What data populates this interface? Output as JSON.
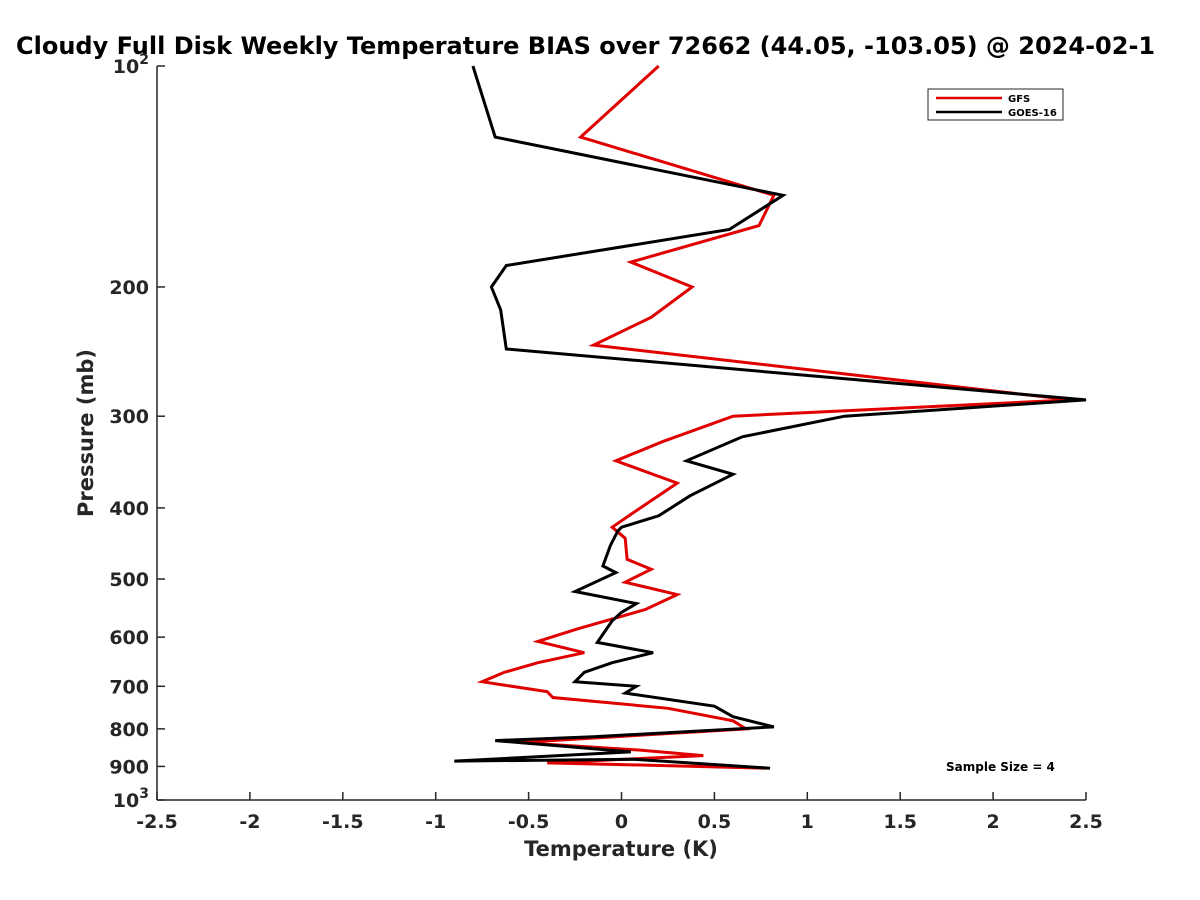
{
  "chart_data": {
    "type": "line",
    "title": "Cloudy Full Disk Weekly Temperature BIAS over 72662 (44.05, -103.05) @ 2024-02-1",
    "xlabel": "Temperature (K)",
    "ylabel": "Pressure (mb)",
    "xlim": [
      -2.5,
      2.5
    ],
    "ylim": [
      100,
      1000
    ],
    "y_scale": "log",
    "y_reversed": true,
    "x_ticks": [
      "-2.5",
      "-2",
      "-1.5",
      "-1",
      "-0.5",
      "0",
      "0.5",
      "1",
      "1.5",
      "2",
      "2.5"
    ],
    "y_ticks": [
      {
        "value": 100,
        "base": "10",
        "exp": "2"
      },
      {
        "value": 200,
        "label": "200"
      },
      {
        "value": 300,
        "label": "300"
      },
      {
        "value": 400,
        "label": "400"
      },
      {
        "value": 500,
        "label": "500"
      },
      {
        "value": 600,
        "label": "600"
      },
      {
        "value": 700,
        "label": "700"
      },
      {
        "value": 800,
        "label": "800"
      },
      {
        "value": 900,
        "label": "900"
      },
      {
        "value": 1000,
        "base": "10",
        "exp": "3"
      }
    ],
    "legend_position": "top-right",
    "annotation": "Sample Size = 4",
    "series": [
      {
        "name": "GFS",
        "color": "#e00000",
        "points": [
          [
            0.2,
            100
          ],
          [
            -0.22,
            125
          ],
          [
            0.82,
            150
          ],
          [
            0.74,
            165
          ],
          [
            0.05,
            185
          ],
          [
            0.38,
            200
          ],
          [
            0.16,
            220
          ],
          [
            -0.15,
            240
          ],
          [
            2.42,
            285
          ],
          [
            0.6,
            300
          ],
          [
            0.22,
            325
          ],
          [
            -0.03,
            345
          ],
          [
            0.3,
            370
          ],
          [
            0.07,
            405
          ],
          [
            -0.05,
            425
          ],
          [
            0.02,
            440
          ],
          [
            0.03,
            470
          ],
          [
            0.16,
            485
          ],
          [
            0.02,
            505
          ],
          [
            0.3,
            525
          ],
          [
            0.13,
            550
          ],
          [
            -0.24,
            585
          ],
          [
            -0.45,
            608
          ],
          [
            -0.2,
            630
          ],
          [
            -0.45,
            650
          ],
          [
            -0.63,
            670
          ],
          [
            -0.75,
            690
          ],
          [
            -0.4,
            712
          ],
          [
            -0.37,
            725
          ],
          [
            0.25,
            750
          ],
          [
            0.6,
            780
          ],
          [
            0.67,
            800
          ],
          [
            -0.55,
            835
          ],
          [
            0.1,
            855
          ],
          [
            0.44,
            870
          ],
          [
            -0.4,
            890
          ],
          [
            0.0,
            895
          ],
          [
            0.78,
            905
          ]
        ]
      },
      {
        "name": "GOES-16",
        "color": "#000000",
        "points": [
          [
            -0.8,
            100
          ],
          [
            -0.68,
            125
          ],
          [
            0.87,
            150
          ],
          [
            0.58,
            167
          ],
          [
            -0.62,
            187
          ],
          [
            -0.7,
            200
          ],
          [
            -0.65,
            215
          ],
          [
            -0.62,
            243
          ],
          [
            2.5,
            285
          ],
          [
            1.2,
            300
          ],
          [
            0.65,
            320
          ],
          [
            0.35,
            345
          ],
          [
            0.6,
            360
          ],
          [
            0.37,
            385
          ],
          [
            0.2,
            410
          ],
          [
            0.0,
            425
          ],
          [
            -0.02,
            430
          ],
          [
            -0.06,
            450
          ],
          [
            -0.1,
            480
          ],
          [
            -0.03,
            490
          ],
          [
            -0.25,
            520
          ],
          [
            0.08,
            540
          ],
          [
            0.0,
            555
          ],
          [
            -0.05,
            570
          ],
          [
            -0.13,
            610
          ],
          [
            0.17,
            630
          ],
          [
            -0.05,
            650
          ],
          [
            -0.2,
            670
          ],
          [
            -0.25,
            690
          ],
          [
            0.08,
            700
          ],
          [
            0.02,
            715
          ],
          [
            0.5,
            745
          ],
          [
            0.6,
            770
          ],
          [
            0.82,
            795
          ],
          [
            -0.15,
            820
          ],
          [
            -0.68,
            830
          ],
          [
            0.05,
            860
          ],
          [
            -0.9,
            885
          ],
          [
            0.07,
            880
          ],
          [
            0.8,
            905
          ]
        ]
      }
    ]
  }
}
